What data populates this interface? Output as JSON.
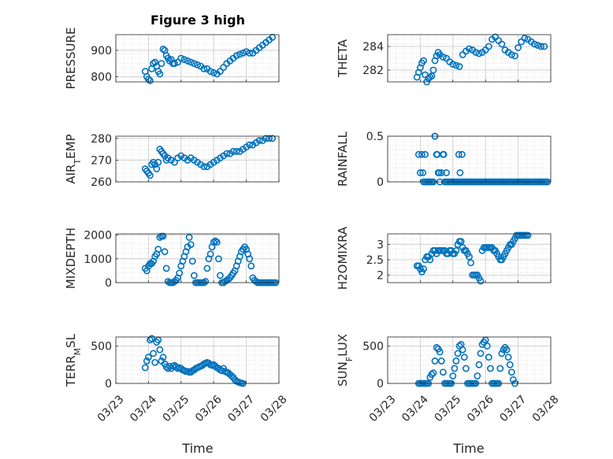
{
  "figure": {
    "title": "Figure 3 high",
    "xlabel": "Time"
  },
  "colors": {
    "marker": "#0072BD",
    "axis": "#262626",
    "grid": "#d9d9d9"
  },
  "chart_data": [
    {
      "type": "scatter",
      "ylabel": "PRESSURE",
      "ylim": [
        780,
        960
      ],
      "yticks": [
        800,
        900
      ],
      "xlim": [
        "03/23",
        "03/28"
      ],
      "x": [
        23.9,
        23.95,
        24.0,
        24.05,
        24.1,
        24.15,
        24.2,
        24.25,
        24.3,
        24.35,
        24.4,
        24.45,
        24.5,
        24.55,
        24.6,
        24.65,
        24.7,
        24.75,
        24.8,
        24.9,
        25.0,
        25.1,
        25.2,
        25.3,
        25.4,
        25.5,
        25.6,
        25.7,
        25.8,
        25.9,
        26.0,
        26.1,
        26.2,
        26.3,
        26.4,
        26.5,
        26.6,
        26.7,
        26.8,
        26.9,
        27.0,
        27.1,
        27.2,
        27.3,
        27.4,
        27.5,
        27.6,
        27.7,
        27.8
      ],
      "y": [
        820,
        800,
        790,
        785,
        830,
        850,
        855,
        840,
        820,
        810,
        850,
        905,
        900,
        880,
        870,
        860,
        865,
        850,
        850,
        855,
        870,
        865,
        860,
        855,
        850,
        845,
        840,
        830,
        830,
        820,
        815,
        810,
        820,
        835,
        850,
        860,
        870,
        880,
        885,
        890,
        895,
        890,
        890,
        900,
        910,
        920,
        930,
        940,
        950
      ]
    },
    {
      "type": "scatter",
      "ylabel": "THETA",
      "ylim": [
        281,
        285
      ],
      "yticks": [
        282,
        284
      ],
      "xlim": [
        "03/23",
        "03/28"
      ],
      "x": [
        23.9,
        23.95,
        24.0,
        24.05,
        24.1,
        24.15,
        24.2,
        24.25,
        24.3,
        24.35,
        24.4,
        24.45,
        24.5,
        24.55,
        24.6,
        24.7,
        24.8,
        24.9,
        25.0,
        25.1,
        25.2,
        25.3,
        25.4,
        25.5,
        25.6,
        25.7,
        25.8,
        25.9,
        26.0,
        26.1,
        26.2,
        26.3,
        26.4,
        26.5,
        26.6,
        26.7,
        26.8,
        26.9,
        27.0,
        27.1,
        27.2,
        27.3,
        27.4,
        27.5,
        27.6,
        27.7,
        27.8
      ],
      "y": [
        281.4,
        281.8,
        282.2,
        282.6,
        282.8,
        281.6,
        281.0,
        281.3,
        281.4,
        281.5,
        282.0,
        282.8,
        283.2,
        283.5,
        283.3,
        283.1,
        283.0,
        282.7,
        282.5,
        282.4,
        282.3,
        283.3,
        283.6,
        283.8,
        283.7,
        283.5,
        283.4,
        283.5,
        283.7,
        284.0,
        284.6,
        284.8,
        284.5,
        284.2,
        283.7,
        283.5,
        283.3,
        283.2,
        283.9,
        284.4,
        284.7,
        284.6,
        284.4,
        284.2,
        284.1,
        284.0,
        284.0
      ]
    },
    {
      "type": "scatter",
      "ylabel": "AIR_TEMP",
      "ylim": [
        260,
        281
      ],
      "yticks": [
        260,
        270,
        280
      ],
      "xlim": [
        "03/23",
        "03/28"
      ],
      "x": [
        23.9,
        23.95,
        24.0,
        24.05,
        24.1,
        24.15,
        24.2,
        24.25,
        24.3,
        24.35,
        24.4,
        24.45,
        24.5,
        24.55,
        24.6,
        24.7,
        24.8,
        24.9,
        25.0,
        25.1,
        25.2,
        25.3,
        25.4,
        25.5,
        25.6,
        25.7,
        25.8,
        25.9,
        26.0,
        26.1,
        26.2,
        26.3,
        26.4,
        26.5,
        26.6,
        26.7,
        26.8,
        26.9,
        27.0,
        27.1,
        27.2,
        27.3,
        27.4,
        27.5,
        27.6,
        27.7,
        27.8
      ],
      "y": [
        266,
        265,
        264,
        263,
        268,
        269,
        268,
        266,
        269,
        275,
        274,
        273,
        272,
        270,
        271,
        270,
        269,
        271,
        272,
        271,
        270,
        271,
        270,
        269,
        268,
        267,
        267,
        268,
        269,
        270,
        271,
        272,
        273,
        273,
        274,
        274,
        274,
        275,
        276,
        277,
        277,
        278,
        279,
        279,
        280,
        280,
        280
      ]
    },
    {
      "type": "scatter",
      "ylabel": "RAINFALL",
      "ylim": [
        0,
        0.5
      ],
      "yticks": [
        0,
        0.5
      ],
      "xlim": [
        "03/23",
        "03/28"
      ],
      "x": [
        23.95,
        24.0,
        24.05,
        24.1,
        24.15,
        24.2,
        24.25,
        24.3,
        24.35,
        24.4,
        24.45,
        24.5,
        24.55,
        24.6,
        24.65,
        24.7,
        24.75,
        24.8,
        24.85,
        24.9,
        24.95,
        25.0,
        25.05,
        25.1,
        25.15,
        25.2,
        25.25,
        25.3,
        25.35,
        25.4,
        25.45,
        25.5,
        25.55,
        25.6,
        25.65,
        25.7,
        25.75,
        25.8,
        25.85,
        25.9,
        25.95,
        26.0,
        26.05,
        26.1,
        26.15,
        26.2,
        26.25,
        26.3,
        26.35,
        26.4,
        26.45,
        26.5,
        26.55,
        26.6,
        26.65,
        26.7,
        26.75,
        26.8,
        26.85,
        26.9,
        26.95,
        27.0,
        27.05,
        27.1,
        27.15,
        27.2,
        27.25,
        27.3,
        27.35,
        27.4,
        27.45,
        27.5,
        27.55,
        27.6,
        27.65,
        27.7,
        27.75,
        27.8,
        27.85,
        27.9,
        24.08,
        24.15,
        24.25,
        24.45,
        24.52,
        24.58,
        24.72,
        24.8,
        25.18,
        25.22,
        25.28
      ],
      "y": [
        0.3,
        0.1,
        0.3,
        0,
        0,
        0,
        0,
        0,
        0,
        0,
        0.5,
        0.3,
        0.1,
        0,
        0.1,
        0.3,
        0,
        0,
        0,
        0,
        0,
        0,
        0,
        0,
        0,
        0,
        0,
        0,
        0,
        0,
        0,
        0,
        0,
        0,
        0,
        0,
        0,
        0,
        0,
        0,
        0,
        0,
        0,
        0,
        0,
        0,
        0,
        0,
        0,
        0,
        0,
        0,
        0,
        0,
        0,
        0,
        0,
        0,
        0,
        0,
        0,
        0,
        0,
        0,
        0,
        0,
        0,
        0,
        0,
        0,
        0,
        0,
        0,
        0,
        0,
        0,
        0,
        0,
        0,
        0,
        0.1,
        0.3,
        0,
        0.5,
        0.3,
        0.1,
        0.3,
        0.1,
        0.3,
        0.1,
        0.3
      ]
    },
    {
      "type": "scatter",
      "ylabel": "MIXDEPTH",
      "ylim": [
        0,
        2050
      ],
      "yticks": [
        0,
        1000,
        2000
      ],
      "xlim": [
        "03/23",
        "03/28"
      ],
      "x": [
        23.9,
        23.95,
        24.0,
        24.05,
        24.1,
        24.15,
        24.2,
        24.25,
        24.3,
        24.35,
        24.4,
        24.45,
        24.5,
        24.55,
        24.6,
        24.65,
        24.7,
        24.75,
        24.8,
        24.85,
        24.9,
        24.95,
        25.0,
        25.05,
        25.1,
        25.15,
        25.2,
        25.25,
        25.3,
        25.35,
        25.4,
        25.45,
        25.5,
        25.55,
        25.6,
        25.65,
        25.7,
        25.75,
        25.8,
        25.85,
        25.9,
        25.95,
        26.0,
        26.05,
        26.1,
        26.15,
        26.2,
        26.25,
        26.3,
        26.35,
        26.4,
        26.45,
        26.5,
        26.55,
        26.6,
        26.65,
        26.7,
        26.75,
        26.8,
        26.85,
        26.9,
        26.95,
        27.0,
        27.05,
        27.1,
        27.15,
        27.2,
        27.25,
        27.3,
        27.35,
        27.4,
        27.45,
        27.5,
        27.55,
        27.6,
        27.65,
        27.7,
        27.75,
        27.8,
        27.85,
        27.9
      ],
      "y": [
        600,
        500,
        700,
        800,
        800,
        900,
        1100,
        1200,
        1400,
        1900,
        1950,
        1950,
        1300,
        600,
        50,
        0,
        0,
        0,
        50,
        100,
        200,
        400,
        700,
        900,
        1100,
        1300,
        1500,
        1900,
        1600,
        900,
        300,
        0,
        0,
        0,
        0,
        0,
        0,
        50,
        600,
        1000,
        1200,
        1500,
        1700,
        1750,
        1700,
        1000,
        300,
        0,
        0,
        50,
        100,
        150,
        200,
        300,
        400,
        500,
        700,
        900,
        1100,
        1300,
        1400,
        1500,
        1400,
        1200,
        1000,
        700,
        200,
        100,
        50,
        0,
        0,
        0,
        0,
        0,
        0,
        0,
        0,
        0,
        0,
        0,
        0
      ]
    },
    {
      "type": "scatter",
      "ylabel": "H2OMIXRA",
      "ylim": [
        1.75,
        3.35
      ],
      "yticks": [
        2,
        2.5,
        3
      ],
      "xlim": [
        "03/23",
        "03/28"
      ],
      "x": [
        23.9,
        23.95,
        24.0,
        24.05,
        24.1,
        24.15,
        24.2,
        24.25,
        24.3,
        24.35,
        24.4,
        24.45,
        24.5,
        24.55,
        24.6,
        24.65,
        24.7,
        24.75,
        24.8,
        24.85,
        24.9,
        24.95,
        25.0,
        25.05,
        25.1,
        25.15,
        25.2,
        25.25,
        25.3,
        25.35,
        25.4,
        25.45,
        25.5,
        25.55,
        25.6,
        25.65,
        25.7,
        25.75,
        25.8,
        25.85,
        25.9,
        25.95,
        26.0,
        26.05,
        26.1,
        26.15,
        26.2,
        26.25,
        26.3,
        26.35,
        26.4,
        26.45,
        26.5,
        26.55,
        26.6,
        26.65,
        26.7,
        26.75,
        26.8,
        26.85,
        26.9,
        26.95,
        27.0,
        27.05,
        27.1,
        27.15,
        27.2,
        27.25,
        27.3
      ],
      "y": [
        2.3,
        2.3,
        2.2,
        2.1,
        2.2,
        2.5,
        2.6,
        2.6,
        2.5,
        2.7,
        2.8,
        2.8,
        2.7,
        2.8,
        2.8,
        2.8,
        2.8,
        2.8,
        2.7,
        2.7,
        2.8,
        2.8,
        2.7,
        2.7,
        2.8,
        3.0,
        3.1,
        3.1,
        2.9,
        2.8,
        2.8,
        2.7,
        2.6,
        2.4,
        2.0,
        2.0,
        2.0,
        2.0,
        1.9,
        1.8,
        2.8,
        2.9,
        2.9,
        2.9,
        2.9,
        2.9,
        2.9,
        2.8,
        2.8,
        2.7,
        2.6,
        2.5,
        2.5,
        2.6,
        2.7,
        2.8,
        2.9,
        3.0,
        3.0,
        3.1,
        3.2,
        3.3,
        3.3,
        3.3,
        3.3,
        3.3,
        3.3,
        3.3,
        3.3
      ]
    },
    {
      "type": "scatter",
      "ylabel": "TERR_MSL",
      "ylim": [
        0,
        620
      ],
      "yticks": [
        0,
        500
      ],
      "xlim": [
        "03/23",
        "03/28"
      ],
      "x": [
        23.9,
        23.95,
        24.0,
        24.05,
        24.1,
        24.15,
        24.2,
        24.25,
        24.3,
        24.35,
        24.4,
        24.45,
        24.5,
        24.55,
        24.6,
        24.65,
        24.7,
        24.75,
        24.8,
        24.85,
        24.9,
        24.95,
        25.0,
        25.05,
        25.1,
        25.15,
        25.2,
        25.25,
        25.3,
        25.35,
        25.4,
        25.45,
        25.5,
        25.55,
        25.6,
        25.65,
        25.7,
        25.75,
        25.8,
        25.85,
        25.9,
        25.95,
        26.0,
        26.05,
        26.1,
        26.15,
        26.2,
        26.25,
        26.3,
        26.35,
        26.4,
        26.45,
        26.5,
        26.55,
        26.6,
        26.65,
        26.7,
        26.75,
        26.8,
        26.85,
        26.9
      ],
      "y": [
        210,
        300,
        350,
        580,
        600,
        400,
        280,
        550,
        580,
        450,
        300,
        350,
        260,
        220,
        200,
        230,
        200,
        230,
        240,
        220,
        200,
        210,
        200,
        180,
        170,
        160,
        160,
        150,
        150,
        170,
        180,
        200,
        210,
        220,
        230,
        240,
        260,
        270,
        280,
        270,
        250,
        240,
        250,
        230,
        210,
        200,
        180,
        170,
        200,
        160,
        150,
        140,
        120,
        100,
        80,
        50,
        30,
        20,
        10,
        5,
        0
      ]
    },
    {
      "type": "scatter",
      "ylabel": "SUN_FLUX",
      "ylim": [
        0,
        620
      ],
      "yticks": [
        0,
        500
      ],
      "xlim": [
        "03/23",
        "03/28"
      ],
      "x": [
        23.95,
        24.0,
        24.05,
        24.1,
        24.15,
        24.2,
        24.25,
        24.3,
        24.35,
        24.4,
        24.45,
        24.5,
        24.55,
        24.6,
        24.65,
        24.7,
        24.75,
        24.8,
        24.85,
        24.9,
        24.95,
        25.0,
        25.05,
        25.1,
        25.15,
        25.2,
        25.25,
        25.3,
        25.35,
        25.4,
        25.45,
        25.5,
        25.55,
        25.6,
        25.65,
        25.7,
        25.75,
        25.8,
        25.85,
        25.9,
        25.95,
        26.0,
        26.05,
        26.1,
        26.15,
        26.2,
        26.25,
        26.3,
        26.35,
        26.4,
        26.45,
        26.5,
        26.55,
        26.6,
        26.65,
        26.7,
        26.75,
        26.8,
        26.85,
        26.9
      ],
      "y": [
        0,
        0,
        0,
        0,
        0,
        0,
        0,
        80,
        120,
        140,
        300,
        480,
        460,
        420,
        300,
        150,
        0,
        0,
        0,
        0,
        0,
        100,
        200,
        300,
        400,
        500,
        520,
        450,
        350,
        200,
        0,
        0,
        0,
        0,
        0,
        0,
        100,
        250,
        400,
        520,
        550,
        580,
        500,
        350,
        200,
        0,
        0,
        0,
        0,
        0,
        200,
        400,
        450,
        480,
        450,
        350,
        250,
        150,
        50,
        0
      ]
    }
  ]
}
